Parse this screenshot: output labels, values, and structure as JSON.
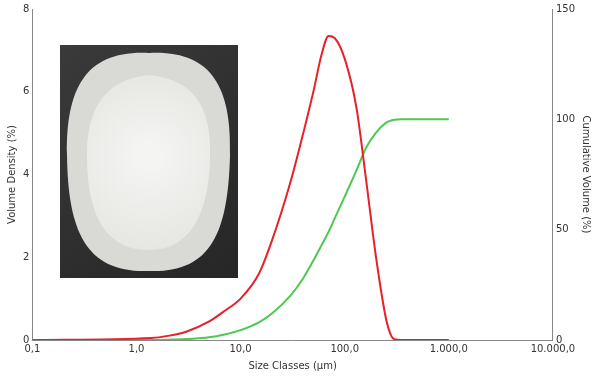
{
  "chart_data": {
    "type": "line",
    "x_label": "Size Classes (µm)",
    "y_label": "Volume Density (%)",
    "y2_label": "Cumulative Volume (%)",
    "log": "x",
    "grid": false,
    "x": [
      0.1,
      1.4,
      2,
      3,
      5,
      7,
      10,
      15,
      20,
      30,
      40,
      50,
      60,
      70,
      80,
      100,
      130,
      160,
      200,
      250,
      280,
      300,
      350,
      1000
    ],
    "series": [
      {
        "color": "#e8202a",
        "values": [
          0,
          0.05,
          0.1,
          0.2,
          0.45,
          0.7,
          1.0,
          1.6,
          2.4,
          3.8,
          5.0,
          6.0,
          6.9,
          7.35,
          7.3,
          6.8,
          5.6,
          3.9,
          2.0,
          0.5,
          0.1,
          0.02,
          0,
          0
        ]
      },
      {
        "color": "#4cc94f",
        "axis": "y2",
        "values": [
          0,
          0,
          0.1,
          0.4,
          1.2,
          2.5,
          4.5,
          8,
          12,
          20,
          28,
          36,
          43,
          49,
          55,
          65,
          77,
          87,
          94,
          98.5,
          99.5,
          99.8,
          100,
          100
        ]
      }
    ],
    "xlim": [
      0.1,
      10000
    ],
    "xticks": [
      {
        "value": 0.1,
        "label": "0,1"
      },
      {
        "value": 1,
        "label": "1,0"
      },
      {
        "value": 10,
        "label": "10,0"
      },
      {
        "value": 100,
        "label": "100,0"
      },
      {
        "value": 1000,
        "label": "1.000,0"
      },
      {
        "value": 10000,
        "label": "10.000,0"
      }
    ],
    "ylim": [
      0,
      8
    ],
    "yticks": [
      0,
      2,
      4,
      6,
      8
    ],
    "y2lim": [
      0,
      150
    ],
    "y2ticks": [
      0,
      50,
      100,
      150
    ]
  }
}
